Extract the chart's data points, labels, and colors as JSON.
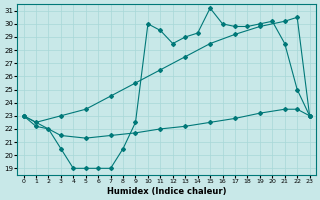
{
  "title": "",
  "xlabel": "Humidex (Indice chaleur)",
  "ylabel": "",
  "bg_color": "#c8e8e8",
  "grid_color": "#a8d8d8",
  "line_color": "#007878",
  "xlim": [
    -0.5,
    23.5
  ],
  "ylim": [
    18.5,
    31.5
  ],
  "yticks": [
    19,
    20,
    21,
    22,
    23,
    24,
    25,
    26,
    27,
    28,
    29,
    30,
    31
  ],
  "xticks": [
    0,
    1,
    2,
    3,
    4,
    5,
    6,
    7,
    8,
    9,
    10,
    11,
    12,
    13,
    14,
    15,
    16,
    17,
    18,
    19,
    20,
    21,
    22,
    23
  ],
  "curve_bottom_x": [
    0,
    1,
    2,
    3,
    4,
    5,
    6,
    7,
    8,
    9,
    10,
    11,
    12,
    13,
    14,
    15,
    16,
    17,
    18,
    19,
    20,
    21,
    22,
    23
  ],
  "curve_bottom_y": [
    23.0,
    22.2,
    22.0,
    20.5,
    19.0,
    19.0,
    19.0,
    19.0,
    20.5,
    22.5,
    30.0,
    29.5,
    28.5,
    29.0,
    29.3,
    31.2,
    30.0,
    29.8,
    29.8,
    30.0,
    30.2,
    28.5,
    25.0,
    23.0
  ],
  "curve_diag_x": [
    0,
    1,
    3,
    5,
    7,
    9,
    11,
    13,
    15,
    17,
    19,
    21,
    22,
    23
  ],
  "curve_diag_y": [
    23.0,
    22.5,
    23.0,
    23.5,
    24.5,
    25.5,
    26.5,
    27.5,
    28.5,
    29.2,
    29.8,
    30.2,
    30.5,
    23.0
  ],
  "curve_flat_x": [
    0,
    3,
    5,
    7,
    9,
    11,
    13,
    15,
    17,
    19,
    21,
    22,
    23
  ],
  "curve_flat_y": [
    23.0,
    21.5,
    21.3,
    21.5,
    21.7,
    22.0,
    22.2,
    22.5,
    22.8,
    23.2,
    23.5,
    23.5,
    23.0
  ]
}
